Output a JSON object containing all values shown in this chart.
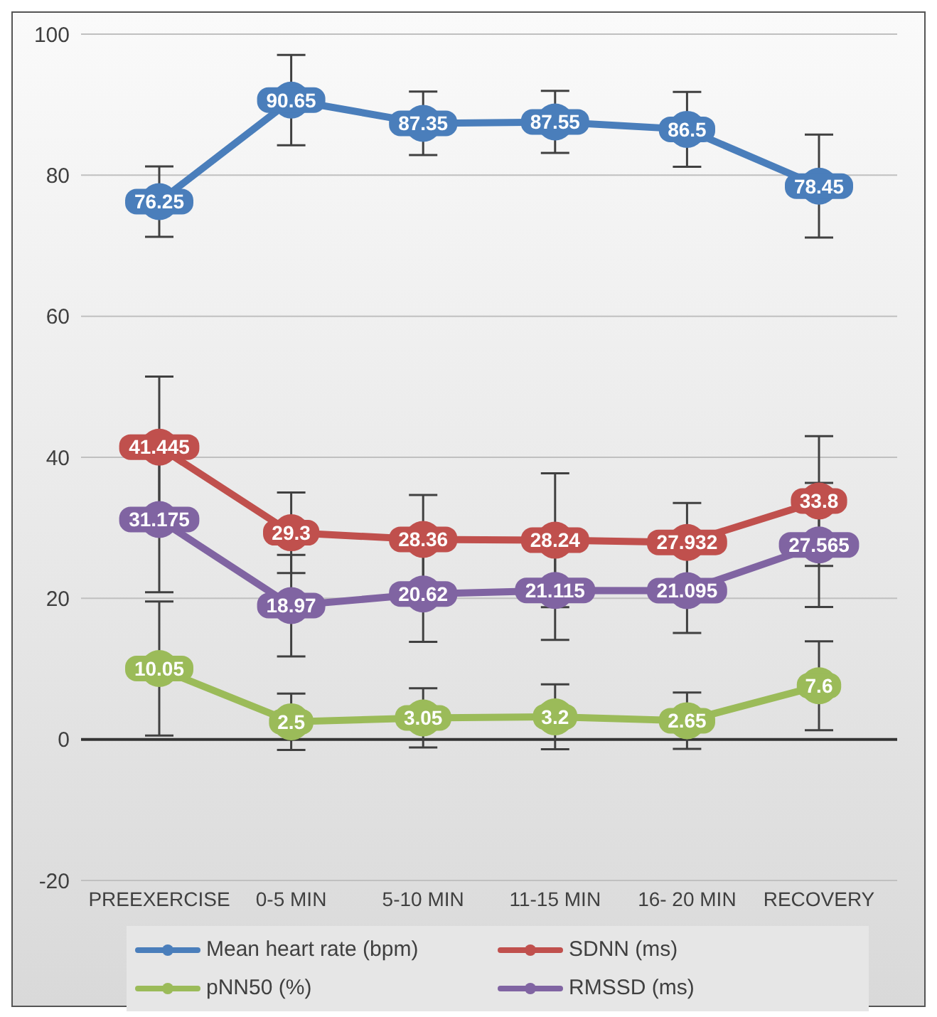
{
  "chart_data": {
    "type": "line",
    "categories": [
      "PREEXERCISE",
      "0-5 MIN",
      "5-10 MIN",
      "11-15 MIN",
      "16- 20 MIN",
      "RECOVERY"
    ],
    "series": [
      {
        "name": "Mean heart rate (bpm)",
        "color": "#4a7ebb",
        "values": [
          76.25,
          90.65,
          87.35,
          87.55,
          86.5,
          78.45
        ],
        "errors": [
          5,
          6.4,
          4.5,
          4.4,
          5.3,
          7.3
        ]
      },
      {
        "name": "SDNN (ms)",
        "color": "#c0504d",
        "values": [
          41.445,
          29.3,
          28.36,
          28.24,
          27.932,
          33.8
        ],
        "errors": [
          10,
          5.7,
          6.3,
          9.5,
          5.6,
          9.2
        ]
      },
      {
        "name": "pNN50 (%)",
        "color": "#9bbb59",
        "values": [
          10.05,
          2.5,
          3.05,
          3.2,
          2.65,
          7.6
        ],
        "errors": [
          9.5,
          4,
          4.2,
          4.6,
          4,
          6.3
        ]
      },
      {
        "name": "RMSSD (ms)",
        "color": "#8064a2",
        "values": [
          31.175,
          18.97,
          20.62,
          21.115,
          21.095,
          27.565
        ],
        "errors": [
          10.3,
          7.2,
          6.8,
          7,
          6,
          8.8
        ]
      }
    ],
    "ylim": [
      -20,
      100
    ],
    "yticks": [
      -20,
      0,
      20,
      40,
      60,
      80,
      100
    ],
    "grid": "y",
    "legend": "bottom",
    "marker": "circle",
    "line_style": "solid",
    "data_labels": true
  }
}
